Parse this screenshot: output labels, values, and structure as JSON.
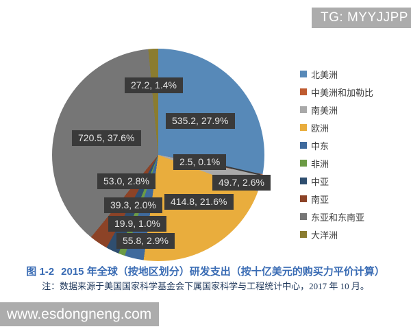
{
  "badge": {
    "text": "TG: MYYJJPP",
    "bg_color": "#acacac"
  },
  "watermark": {
    "text": "www.esdongneng.com",
    "bg_color": "#acacac"
  },
  "caption": {
    "figure_label": "图 1-2",
    "title": "2015 年全球（按地区划分）研发支出（按十亿美元的购买力平价计算）",
    "note": "注：数据来源于美国国家科学基金会下属国家科学与工程统计中心，2017 年 10 月。",
    "title_color": "#3a6cb4"
  },
  "chart_data": {
    "type": "pie",
    "title": "2015 年全球（按地区划分）研发支出（按十亿美元的购买力平价计算）",
    "legend_position": "right",
    "start_angle_deg": 0,
    "direction": "clockwise",
    "label_format": "value, percent",
    "label_box_color": "#3a3a3a",
    "label_text_color": "#e4e4e4",
    "slices": [
      {
        "name": "北美洲",
        "value": 535.2,
        "pct": 27.9,
        "color": "#5789b8"
      },
      {
        "name": "中美洲和加勒比",
        "value": 2.5,
        "pct": 0.1,
        "color": "#bf5b30"
      },
      {
        "name": "南美洲",
        "value": 49.7,
        "pct": 2.6,
        "color": "#a9a9a9"
      },
      {
        "name": "欧洲",
        "value": 414.8,
        "pct": 21.6,
        "color": "#e9ad3d"
      },
      {
        "name": "中东",
        "value": 55.8,
        "pct": 2.9,
        "color": "#3f6a9d"
      },
      {
        "name": "非洲",
        "value": 19.9,
        "pct": 1.0,
        "color": "#6c9b45"
      },
      {
        "name": "中亚",
        "value": 39.3,
        "pct": 2.0,
        "color": "#2f4e6f"
      },
      {
        "name": "南亚",
        "value": 53.0,
        "pct": 2.8,
        "color": "#8c4327"
      },
      {
        "name": "东亚和东南亚",
        "value": 720.5,
        "pct": 37.6,
        "color": "#767676"
      },
      {
        "name": "大洋洲",
        "value": 27.2,
        "pct": 1.4,
        "color": "#8a7c30"
      }
    ]
  }
}
